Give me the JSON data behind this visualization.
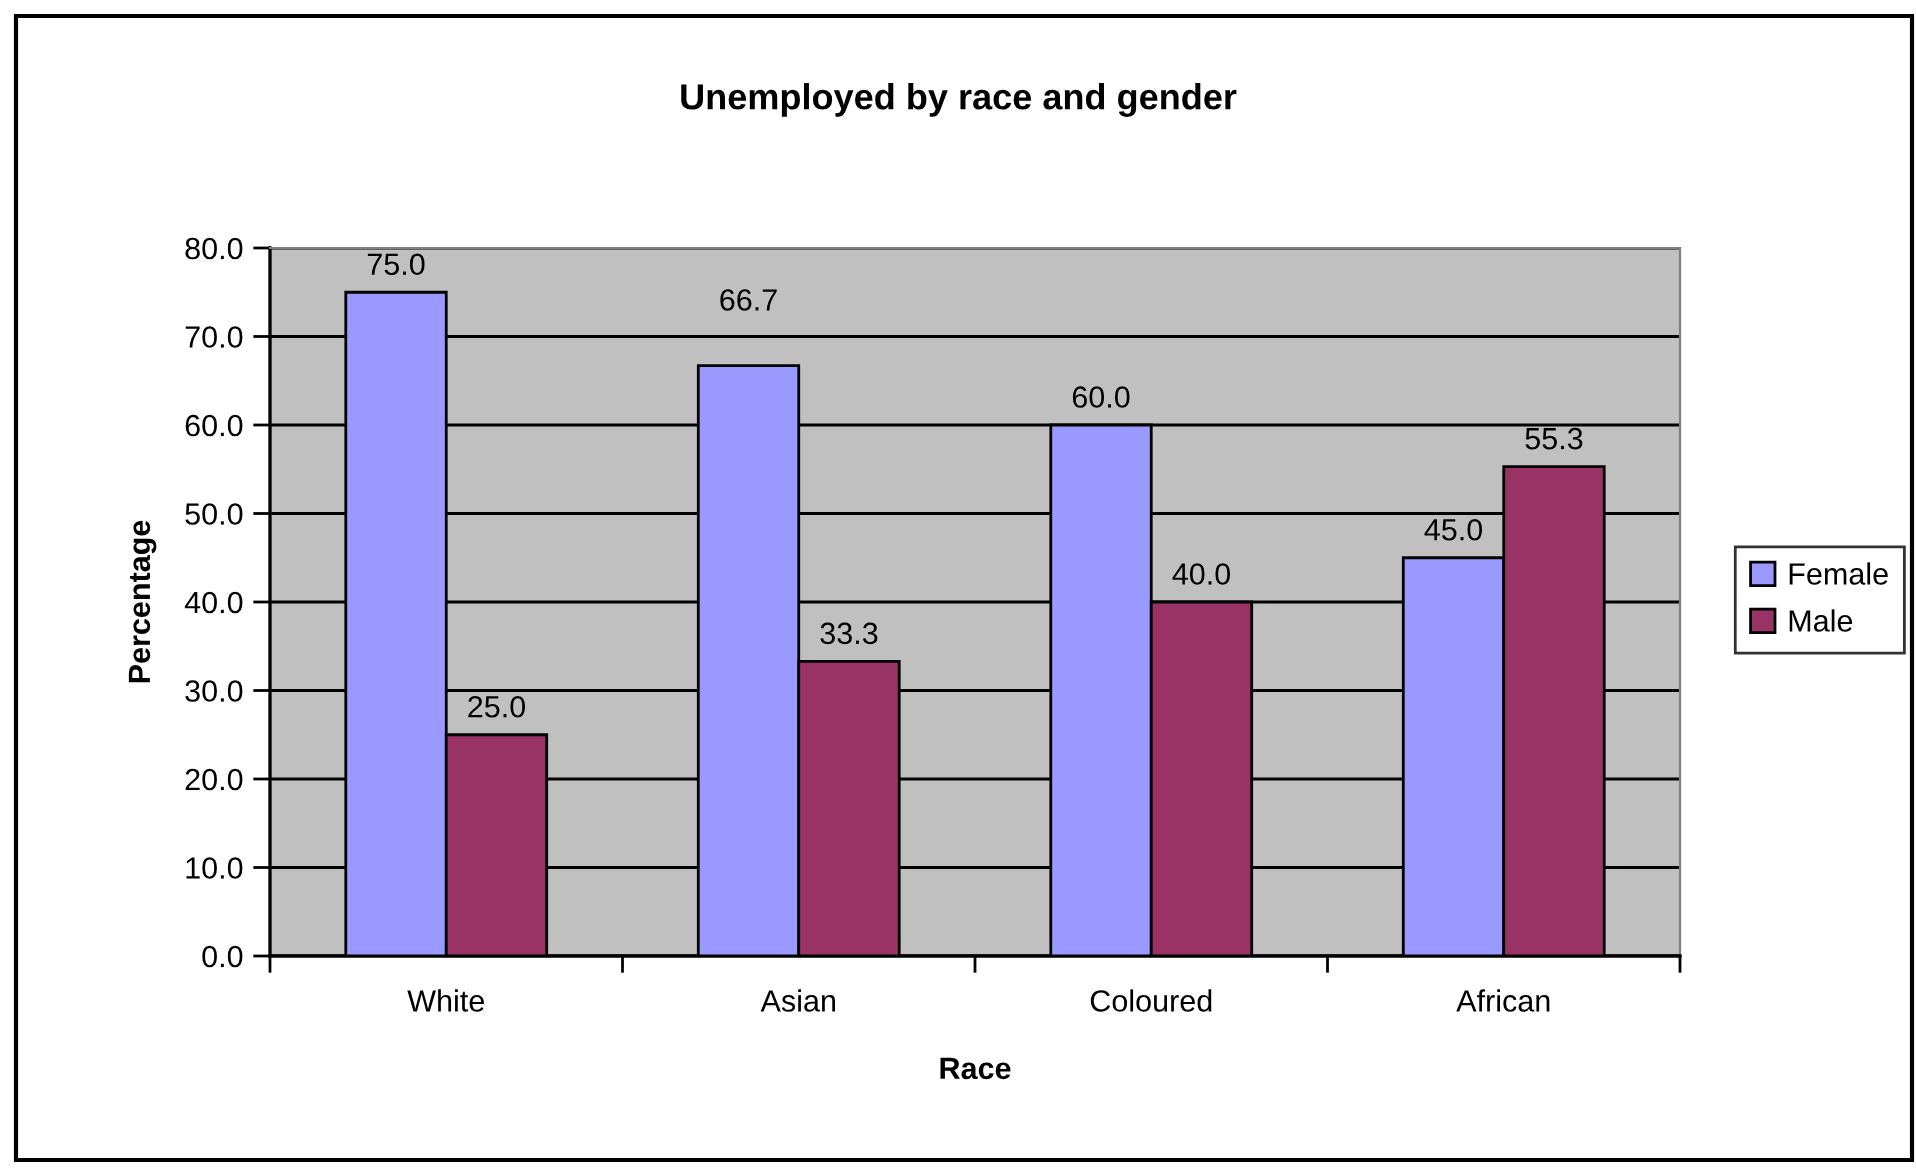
{
  "chart_data": {
    "type": "bar",
    "title": "Unemployed by race and gender",
    "xlabel": "Race",
    "ylabel": "Percentage",
    "categories": [
      "White",
      "Asian",
      "Coloured",
      "African"
    ],
    "series": [
      {
        "name": "Female",
        "color": "#9999ff",
        "values": [
          75.0,
          66.7,
          60.0,
          45.0
        ],
        "value_labels": [
          "75.0",
          "66.7",
          "60.0",
          "45.0"
        ]
      },
      {
        "name": "Male",
        "color": "#993366",
        "values": [
          25.0,
          33.3,
          40.0,
          55.3
        ],
        "value_labels": [
          "25.0",
          "33.3",
          "40.0",
          "55.3"
        ]
      }
    ],
    "ylim": [
      0,
      80
    ],
    "yticks": [
      {
        "value": 0,
        "label": "0.0"
      },
      {
        "value": 10,
        "label": "10.0"
      },
      {
        "value": 20,
        "label": "20.0"
      },
      {
        "value": 30,
        "label": "30.0"
      },
      {
        "value": 40,
        "label": "40.0"
      },
      {
        "value": 50,
        "label": "50.0"
      },
      {
        "value": 60,
        "label": "60.0"
      },
      {
        "value": 70,
        "label": "70.0"
      },
      {
        "value": 80,
        "label": "80.0"
      }
    ],
    "grid": "y",
    "legend": "right"
  }
}
